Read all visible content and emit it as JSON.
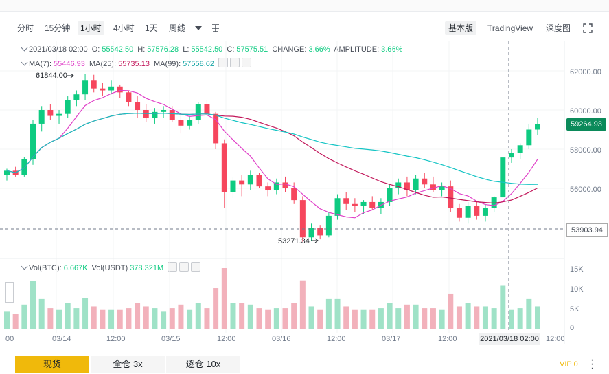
{
  "timeframes": {
    "items": [
      "分时",
      "15分钟",
      "1小时",
      "4小时",
      "1天",
      "周线"
    ],
    "active": "1小时"
  },
  "view_modes": {
    "items": [
      "基本版",
      "TradingView",
      "深度图"
    ],
    "active": "基本版"
  },
  "ohlc_legend": {
    "time": "2021/03/18 02:00",
    "o_label": "O:",
    "o": "55542.50",
    "h_label": "H:",
    "h": "57576.28",
    "l_label": "L:",
    "l": "55542.50",
    "c_label": "C:",
    "c": "57575.51",
    "change_label": "CHANGE:",
    "change": "3.66%",
    "amplitude_label": "AMPLITUDE:",
    "amplitude": "3.66%"
  },
  "ma_legend": {
    "ma7_label": "MA(7):",
    "ma7": "55446.93",
    "ma25_label": "MA(25):",
    "ma25": "55735.13",
    "ma99_label": "MA(99):",
    "ma99": "57558.62"
  },
  "vol_legend": {
    "btc_label": "Vol(BTC):",
    "btc": "6.667K",
    "usdt_label": "Vol(USDT)",
    "usdt": "378.321M"
  },
  "price_axis": [
    "62000.00",
    "60000.00",
    "58000.00",
    "56000.00"
  ],
  "vol_axis": [
    "15K",
    "10K",
    "5K",
    "0"
  ],
  "time_axis": [
    "00",
    "03/14",
    "12:00",
    "03/15",
    "12:00",
    "03/16",
    "12:00",
    "03/17",
    "12:00",
    "12:00"
  ],
  "last_price": "59264.93",
  "crosshair_price": "53903.94",
  "crosshair_time": "2021/03/18 02:00",
  "high_marker": "61844.00",
  "low_marker": "53271.34",
  "bottom_tabs": [
    "现货",
    "全仓 3x",
    "逐仓 10x"
  ],
  "vip": "VIP 0",
  "colors": {
    "up": "#0ecb81",
    "down": "#f6465d",
    "ma7": "#e040c8",
    "ma25": "#c2185b",
    "ma99": "#14c4c4"
  },
  "chart_data": {
    "type": "candlestick",
    "pair": "BTC",
    "interval": "1小时",
    "ylim": [
      53000,
      62800
    ],
    "candles_approx": [
      [
        56700,
        57000,
        56400,
        56900
      ],
      [
        56900,
        57100,
        56600,
        56700
      ],
      [
        56700,
        57600,
        56600,
        57500
      ],
      [
        57500,
        59500,
        57200,
        59300
      ],
      [
        59300,
        60200,
        58900,
        60000
      ],
      [
        60000,
        60300,
        59500,
        59700
      ],
      [
        59700,
        60000,
        59300,
        59800
      ],
      [
        59800,
        60700,
        59600,
        60500
      ],
      [
        60500,
        61000,
        60200,
        60800
      ],
      [
        60800,
        61844,
        60500,
        61500
      ],
      [
        61500,
        61800,
        60900,
        61100
      ],
      [
        61100,
        61400,
        60700,
        61000
      ],
      [
        61000,
        61500,
        60800,
        61200
      ],
      [
        61200,
        61300,
        60600,
        60900
      ],
      [
        60900,
        61000,
        60200,
        60400
      ],
      [
        60400,
        60700,
        59600,
        60000
      ],
      [
        60000,
        60300,
        59400,
        59600
      ],
      [
        59600,
        60100,
        59300,
        59900
      ],
      [
        59900,
        60200,
        59600,
        60000
      ],
      [
        60000,
        60200,
        59400,
        59500
      ],
      [
        59500,
        59800,
        58800,
        59200
      ],
      [
        59200,
        59700,
        59000,
        59500
      ],
      [
        59500,
        60400,
        59300,
        60300
      ],
      [
        60300,
        60500,
        59700,
        59800
      ],
      [
        59800,
        59900,
        58000,
        58300
      ],
      [
        58300,
        58500,
        55000,
        55800
      ],
      [
        55800,
        56600,
        55500,
        56400
      ],
      [
        56400,
        56700,
        55600,
        56200
      ],
      [
        56200,
        56900,
        55900,
        56700
      ],
      [
        56700,
        56800,
        56000,
        56100
      ],
      [
        56100,
        56300,
        55600,
        55900
      ],
      [
        55900,
        56500,
        55700,
        56300
      ],
      [
        56300,
        56600,
        55800,
        56000
      ],
      [
        56000,
        56300,
        55200,
        55400
      ],
      [
        55400,
        55600,
        53271,
        53500
      ],
      [
        53500,
        54200,
        53300,
        54000
      ],
      [
        54000,
        54100,
        53400,
        53600
      ],
      [
        53600,
        54800,
        53500,
        54600
      ],
      [
        54600,
        55700,
        54400,
        55500
      ],
      [
        55500,
        55800,
        54900,
        55200
      ],
      [
        55200,
        55500,
        54800,
        55100
      ],
      [
        55100,
        55400,
        54700,
        55300
      ],
      [
        55300,
        55600,
        54900,
        55000
      ],
      [
        55000,
        55500,
        54700,
        55300
      ],
      [
        55300,
        56200,
        55100,
        56000
      ],
      [
        56000,
        56500,
        55700,
        56300
      ],
      [
        56300,
        56600,
        55600,
        55900
      ],
      [
        55900,
        56700,
        55700,
        56500
      ],
      [
        56500,
        56800,
        56000,
        56200
      ],
      [
        56200,
        56600,
        55800,
        55900
      ],
      [
        55900,
        56300,
        55600,
        56100
      ],
      [
        56100,
        56400,
        54800,
        55000
      ],
      [
        55000,
        55200,
        54300,
        54500
      ],
      [
        54500,
        55300,
        54200,
        55100
      ],
      [
        55100,
        55300,
        54400,
        54600
      ],
      [
        54600,
        55200,
        54300,
        55000
      ],
      [
        55000,
        55600,
        54800,
        55542
      ],
      [
        55542,
        57576,
        55542,
        57575
      ],
      [
        57575,
        58000,
        57300,
        57800
      ],
      [
        57800,
        58300,
        57500,
        58200
      ],
      [
        58200,
        59300,
        58000,
        59000
      ],
      [
        59000,
        59600,
        58700,
        59265
      ]
    ]
  }
}
